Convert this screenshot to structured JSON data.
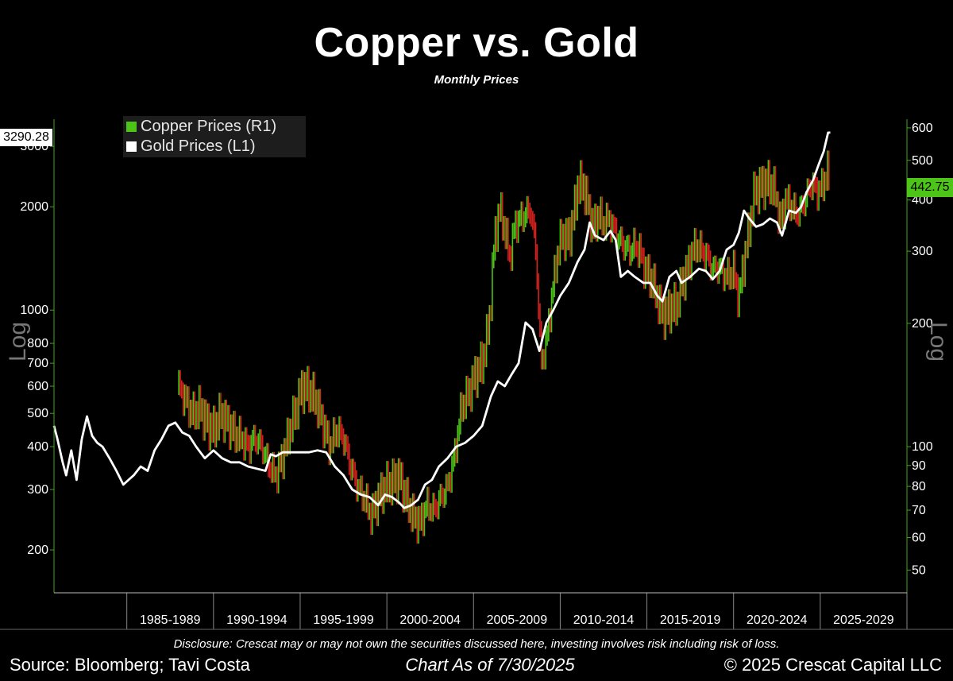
{
  "header": {
    "title": "Copper vs. Gold",
    "subtitle": "Monthly Prices"
  },
  "legend": {
    "copper_label": "Copper Prices (R1)",
    "gold_label": "Gold Prices (L1)"
  },
  "last_values": {
    "gold": "3290.28",
    "copper": "442.75"
  },
  "footer": {
    "disclosure": "Disclosure: Crescat may or may not own the securities discussed here, investing involves risk including risk of loss.",
    "source": "Source: Bloomberg; Tavi Costa",
    "as_of": "Chart As of 7/30/2025",
    "copyright": "© 2025 Crescat Capital LLC"
  },
  "colors": {
    "background": "#000000",
    "gold_line": "#ffffff",
    "copper_up": "#4cc418",
    "copper_down": "#d8211d",
    "axis": "#3fa81e",
    "grid": "#444444"
  },
  "chart_data": {
    "type": "line",
    "x_axis": {
      "unit": "year",
      "range": [
        1980.8,
        2030.0
      ],
      "period_labels": [
        "1985-1989",
        "1990-1994",
        "1995-1999",
        "2000-2004",
        "2005-2009",
        "2010-2014",
        "2015-2019",
        "2020-2024",
        "2025-2029"
      ]
    },
    "left_axis": {
      "label": "Log",
      "scale": "log",
      "range": [
        150,
        3600
      ],
      "ticks": [
        200,
        300,
        400,
        500,
        600,
        700,
        800,
        1000,
        2000,
        3000
      ]
    },
    "right_axis": {
      "label": "Log",
      "scale": "log",
      "range": [
        44,
        630
      ],
      "ticks": [
        50,
        60,
        70,
        80,
        90,
        100,
        200,
        300,
        400,
        500,
        600
      ]
    },
    "series": [
      {
        "name": "Gold Prices (L1)",
        "axis": "left",
        "style": "line",
        "x": [
          1980.8,
          1981.0,
          1981.3,
          1981.5,
          1981.8,
          1982.1,
          1982.4,
          1982.7,
          1983.0,
          1983.3,
          1983.6,
          1984.0,
          1984.4,
          1984.8,
          1985.1,
          1985.4,
          1985.8,
          1986.2,
          1986.6,
          1987.0,
          1987.4,
          1987.8,
          1988.2,
          1988.6,
          1989.0,
          1989.5,
          1990.0,
          1990.5,
          1991.0,
          1991.5,
          1992.0,
          1992.5,
          1993.0,
          1993.3,
          1993.6,
          1994.0,
          1994.5,
          1995.0,
          1995.5,
          1996.0,
          1996.5,
          1997.0,
          1997.5,
          1998.0,
          1998.5,
          1999.0,
          1999.5,
          1999.9,
          2000.3,
          2000.7,
          2001.0,
          2001.4,
          2001.8,
          2002.2,
          2002.6,
          2003.0,
          2003.5,
          2004.0,
          2004.5,
          2005.0,
          2005.5,
          2006.0,
          2006.4,
          2006.8,
          2007.2,
          2007.6,
          2008.0,
          2008.4,
          2008.8,
          2009.2,
          2009.6,
          2010.0,
          2010.5,
          2011.0,
          2011.4,
          2011.7,
          2012.0,
          2012.5,
          2012.9,
          2013.2,
          2013.5,
          2013.9,
          2014.3,
          2014.8,
          2015.2,
          2015.6,
          2015.9,
          2016.3,
          2016.7,
          2017.0,
          2017.5,
          2018.0,
          2018.4,
          2018.8,
          2019.2,
          2019.6,
          2020.0,
          2020.3,
          2020.6,
          2020.9,
          2021.3,
          2021.7,
          2022.1,
          2022.5,
          2022.8,
          2023.2,
          2023.6,
          2023.9,
          2024.2,
          2024.6,
          2024.9,
          2025.2,
          2025.45,
          2025.58
        ],
        "y": [
          460,
          420,
          360,
          330,
          390,
          320,
          420,
          490,
          430,
          410,
          400,
          370,
          340,
          310,
          320,
          330,
          350,
          340,
          390,
          420,
          460,
          470,
          440,
          430,
          400,
          370,
          390,
          370,
          360,
          360,
          350,
          345,
          340,
          380,
          375,
          385,
          385,
          385,
          385,
          390,
          385,
          350,
          330,
          300,
          290,
          285,
          270,
          290,
          285,
          275,
          265,
          270,
          280,
          310,
          320,
          350,
          370,
          400,
          410,
          430,
          460,
          560,
          620,
          600,
          650,
          700,
          920,
          880,
          760,
          920,
          1000,
          1100,
          1200,
          1380,
          1500,
          1800,
          1650,
          1600,
          1700,
          1600,
          1250,
          1300,
          1250,
          1200,
          1200,
          1100,
          1060,
          1250,
          1300,
          1200,
          1250,
          1320,
          1300,
          1230,
          1300,
          1500,
          1550,
          1680,
          1950,
          1850,
          1750,
          1780,
          1850,
          1800,
          1650,
          1950,
          1920,
          2000,
          2200,
          2400,
          2650,
          2900,
          3290,
          3290.28
        ]
      },
      {
        "name": "Copper Prices (R1)",
        "axis": "right",
        "style": "bars",
        "x": [
          1988.0,
          1988.4,
          1988.8,
          1989.2,
          1989.6,
          1990.0,
          1990.4,
          1990.8,
          1991.2,
          1991.6,
          1992.0,
          1992.4,
          1992.8,
          1993.2,
          1993.6,
          1994.0,
          1994.4,
          1994.8,
          1995.1,
          1995.5,
          1995.9,
          1996.3,
          1996.7,
          1997.1,
          1997.5,
          1997.9,
          1998.3,
          1998.7,
          1999.1,
          1999.5,
          1999.9,
          2000.3,
          2000.7,
          2001.1,
          2001.5,
          2001.9,
          2002.3,
          2002.7,
          2003.1,
          2003.5,
          2003.9,
          2004.3,
          2004.7,
          2005.1,
          2005.5,
          2005.9,
          2006.2,
          2006.5,
          2006.8,
          2007.1,
          2007.4,
          2007.7,
          2008.0,
          2008.3,
          2008.6,
          2008.9,
          2009.2,
          2009.5,
          2009.8,
          2010.1,
          2010.4,
          2010.7,
          2011.0,
          2011.3,
          2011.6,
          2011.9,
          2012.2,
          2012.5,
          2012.8,
          2013.1,
          2013.4,
          2013.7,
          2014.0,
          2014.3,
          2014.6,
          2014.9,
          2015.2,
          2015.5,
          2015.8,
          2016.1,
          2016.4,
          2016.7,
          2017.0,
          2017.3,
          2017.6,
          2017.9,
          2018.2,
          2018.5,
          2018.8,
          2019.1,
          2019.4,
          2019.7,
          2020.0,
          2020.3,
          2020.6,
          2020.9,
          2021.2,
          2021.5,
          2021.8,
          2022.1,
          2022.4,
          2022.7,
          2023.0,
          2023.3,
          2023.6,
          2023.9,
          2024.2,
          2024.5,
          2024.8,
          2025.1,
          2025.4,
          2025.58
        ],
        "y": [
          140,
          130,
          120,
          125,
          115,
          110,
          120,
          115,
          108,
          105,
          100,
          105,
          100,
          90,
          85,
          95,
          110,
          125,
          140,
          138,
          130,
          115,
          100,
          110,
          105,
          90,
          80,
          75,
          68,
          75,
          80,
          82,
          85,
          75,
          68,
          65,
          72,
          70,
          75,
          80,
          95,
          125,
          135,
          150,
          160,
          200,
          320,
          380,
          340,
          290,
          350,
          360,
          370,
          380,
          300,
          160,
          180,
          230,
          290,
          330,
          320,
          350,
          430,
          440,
          390,
          340,
          370,
          350,
          360,
          340,
          320,
          310,
          300,
          310,
          300,
          270,
          260,
          240,
          215,
          210,
          220,
          220,
          250,
          270,
          300,
          310,
          300,
          290,
          270,
          275,
          265,
          260,
          270,
          230,
          285,
          340,
          420,
          430,
          440,
          440,
          420,
          350,
          400,
          390,
          370,
          380,
          410,
          440,
          420,
          430,
          470,
          442.75
        ]
      }
    ]
  }
}
